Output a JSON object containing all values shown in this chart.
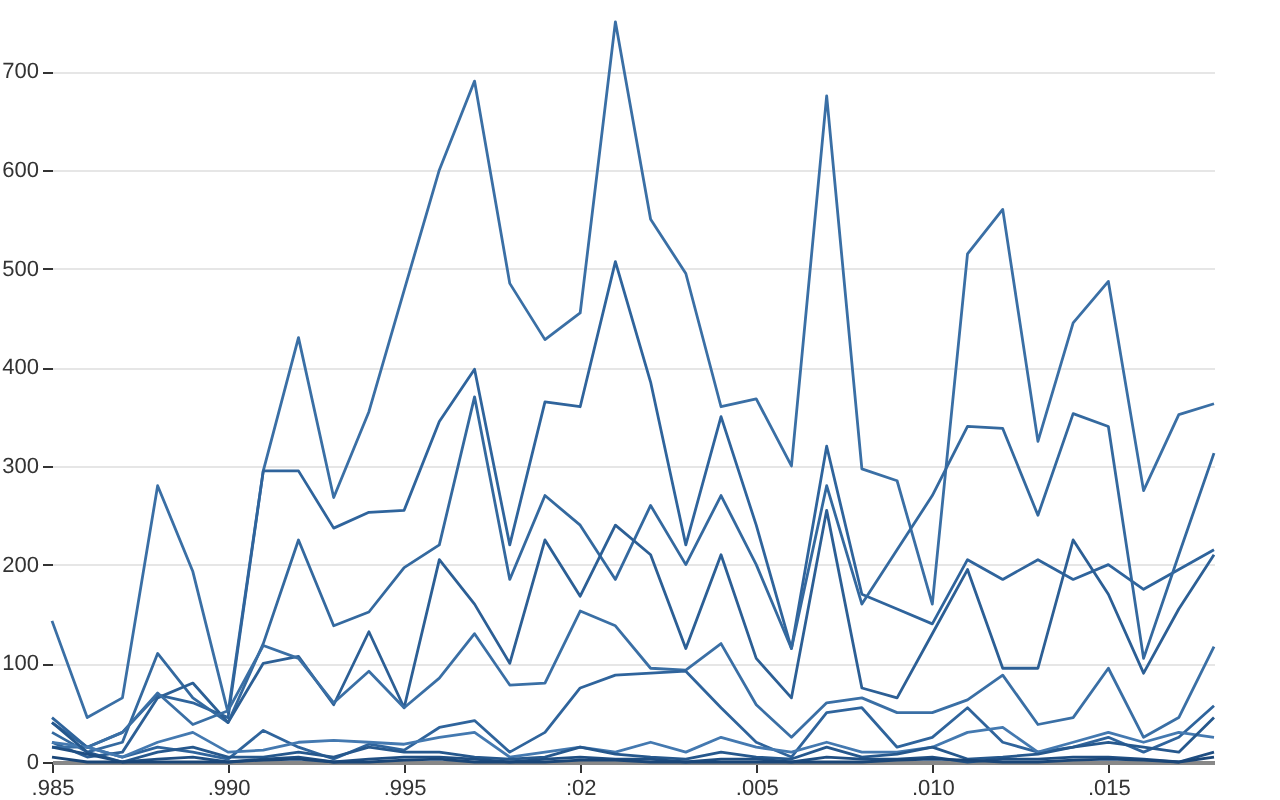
{
  "chart_data": {
    "type": "line",
    "categories": [
      ".985",
      null,
      null,
      null,
      null,
      ".990",
      null,
      null,
      null,
      null,
      ".995",
      null,
      null,
      null,
      null,
      ":02",
      null,
      null,
      null,
      null,
      ".005",
      null,
      null,
      null,
      null,
      ".010",
      null,
      null,
      null,
      null,
      ".015",
      null,
      null,
      null
    ],
    "ylim": [
      0,
      760
    ],
    "yticks": [
      0,
      100,
      200,
      300,
      400,
      500,
      600,
      700
    ],
    "grid": "y",
    "line_style": "solid",
    "series": [
      {
        "color": "#3a6fa5",
        "values": [
          143,
          45,
          65,
          280,
          193,
          50,
          295,
          430,
          268,
          355,
          478,
          600,
          690,
          485,
          428,
          455,
          750,
          550,
          495,
          360,
          368,
          300,
          675,
          297,
          285,
          160,
          515,
          560,
          325,
          445,
          487,
          275,
          352,
          363
        ]
      },
      {
        "color": "#2f649c",
        "values": [
          40,
          15,
          30,
          68,
          60,
          45,
          295,
          295,
          237,
          253,
          255,
          345,
          398,
          220,
          365,
          360,
          507,
          385,
          220,
          350,
          240,
          115,
          320,
          170,
          155,
          140,
          205,
          185,
          205,
          185,
          200,
          175,
          195,
          215
        ]
      },
      {
        "color": "#34699f",
        "values": [
          30,
          10,
          20,
          110,
          65,
          40,
          120,
          225,
          138,
          152,
          197,
          220,
          370,
          185,
          270,
          240,
          185,
          260,
          200,
          270,
          200,
          115,
          280,
          160,
          215,
          270,
          340,
          338,
          250,
          353,
          340,
          105,
          210,
          313
        ]
      },
      {
        "color": "#2c5f95",
        "values": [
          20,
          5,
          10,
          65,
          80,
          40,
          100,
          107,
          58,
          132,
          55,
          205,
          160,
          100,
          225,
          168,
          240,
          210,
          115,
          210,
          105,
          65,
          255,
          75,
          65,
          130,
          195,
          95,
          95,
          225,
          170,
          90,
          155,
          210
        ]
      },
      {
        "color": "#3a6fa5",
        "values": [
          15,
          15,
          30,
          70,
          38,
          52,
          118,
          105,
          60,
          92,
          55,
          85,
          130,
          78,
          80,
          153,
          138,
          95,
          93,
          120,
          58,
          25,
          60,
          65,
          50,
          50,
          63,
          88,
          38,
          45,
          95,
          25,
          45,
          117
        ]
      },
      {
        "color": "#2f649c",
        "values": [
          45,
          15,
          5,
          15,
          10,
          3,
          32,
          15,
          3,
          18,
          12,
          35,
          42,
          10,
          30,
          75,
          88,
          90,
          92,
          55,
          20,
          5,
          50,
          55,
          15,
          25,
          55,
          20,
          10,
          15,
          25,
          10,
          25,
          57
        ]
      },
      {
        "color": "#4479b0",
        "values": [
          20,
          15,
          5,
          20,
          30,
          10,
          12,
          20,
          22,
          20,
          18,
          25,
          30,
          5,
          10,
          15,
          10,
          20,
          10,
          25,
          15,
          10,
          20,
          10,
          10,
          15,
          30,
          35,
          10,
          20,
          30,
          20,
          30,
          25
        ]
      },
      {
        "color": "#26588d",
        "values": [
          40,
          10,
          0,
          10,
          15,
          5,
          5,
          10,
          5,
          15,
          10,
          10,
          5,
          3,
          5,
          15,
          8,
          5,
          3,
          10,
          5,
          3,
          15,
          5,
          8,
          15,
          3,
          5,
          8,
          15,
          20,
          15,
          10,
          45
        ]
      },
      {
        "color": "#1f4e82",
        "values": [
          15,
          8,
          0,
          3,
          5,
          0,
          3,
          5,
          0,
          3,
          5,
          5,
          3,
          0,
          3,
          5,
          3,
          3,
          0,
          3,
          3,
          0,
          5,
          3,
          3,
          5,
          0,
          3,
          3,
          5,
          5,
          3,
          0,
          10
        ]
      },
      {
        "color": "#1a4678",
        "values": [
          5,
          0,
          0,
          0,
          0,
          0,
          2,
          3,
          0,
          0,
          2,
          3,
          0,
          0,
          0,
          2,
          2,
          0,
          0,
          0,
          0,
          0,
          0,
          0,
          2,
          3,
          2,
          0,
          0,
          2,
          3,
          2,
          0,
          5
        ]
      }
    ]
  }
}
